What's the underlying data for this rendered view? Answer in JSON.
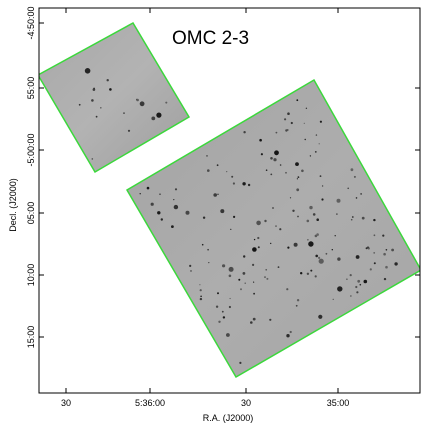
{
  "title": "OMC 2-3",
  "axes": {
    "xlabel": "R.A. (J2000)",
    "ylabel": "Decl. (J2000)",
    "x_ticks": [
      "30",
      "5:36:00",
      "30",
      "35:00"
    ],
    "y_ticks": [
      "-4:50:00",
      "55:00",
      "-5:00:00",
      "05:00",
      "10:00",
      "15:00"
    ]
  },
  "fields": [
    {
      "name": "small-field"
    },
    {
      "name": "large-field"
    }
  ],
  "colors": {
    "footprint_outline": "#3bd83b",
    "field_background": "#a9a9a9",
    "sources": "#1a1a1a"
  }
}
